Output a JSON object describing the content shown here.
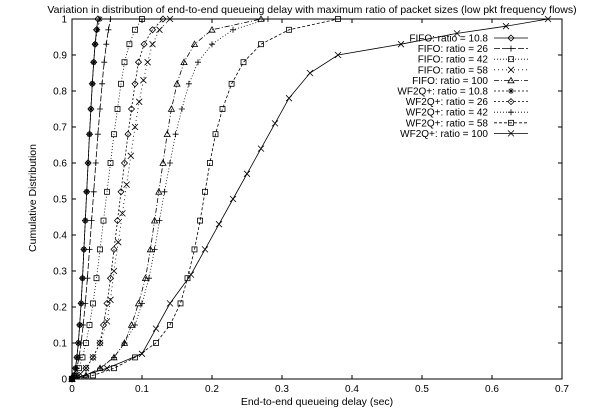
{
  "chart_data": {
    "type": "line",
    "title": "Variation in distribution of end-to-end queueing delay with maximum ratio of packet sizes (low pkt frequency flows)",
    "xlabel": "End-to-end queueing delay (sec)",
    "ylabel": "Cumulative Distribution",
    "xlim": [
      0,
      0.7
    ],
    "ylim": [
      0,
      1
    ],
    "xticks": [
      "0",
      "0.1",
      "0.2",
      "0.3",
      "0.4",
      "0.5",
      "0.6",
      "0.7"
    ],
    "yticks": [
      "0",
      "0.1",
      "0.2",
      "0.3",
      "0.4",
      "0.5",
      "0.6",
      "0.7",
      "0.8",
      "0.9",
      "1"
    ],
    "grid": false,
    "legend_position": "top-right",
    "series": [
      {
        "name": "FIFO: ratio = 10.8",
        "marker": "diamond",
        "dash": "solid",
        "points": [
          [
            0,
            0
          ],
          [
            0.003,
            0.01
          ],
          [
            0.005,
            0.03
          ],
          [
            0.007,
            0.06
          ],
          [
            0.009,
            0.1
          ],
          [
            0.011,
            0.15
          ],
          [
            0.013,
            0.21
          ],
          [
            0.015,
            0.28
          ],
          [
            0.017,
            0.36
          ],
          [
            0.019,
            0.44
          ],
          [
            0.021,
            0.52
          ],
          [
            0.023,
            0.6
          ],
          [
            0.025,
            0.68
          ],
          [
            0.027,
            0.75
          ],
          [
            0.029,
            0.82
          ],
          [
            0.031,
            0.88
          ],
          [
            0.033,
            0.93
          ],
          [
            0.035,
            0.97
          ],
          [
            0.037,
            1.0
          ]
        ]
      },
      {
        "name": "FIFO: ratio = 26",
        "marker": "plus",
        "dash": "6,2",
        "points": [
          [
            0,
            0
          ],
          [
            0.004,
            0.01
          ],
          [
            0.007,
            0.03
          ],
          [
            0.01,
            0.06
          ],
          [
            0.013,
            0.1
          ],
          [
            0.016,
            0.15
          ],
          [
            0.019,
            0.21
          ],
          [
            0.022,
            0.28
          ],
          [
            0.025,
            0.36
          ],
          [
            0.028,
            0.44
          ],
          [
            0.031,
            0.52
          ],
          [
            0.034,
            0.6
          ],
          [
            0.037,
            0.68
          ],
          [
            0.04,
            0.75
          ],
          [
            0.043,
            0.82
          ],
          [
            0.046,
            0.88
          ],
          [
            0.049,
            0.93
          ],
          [
            0.052,
            0.97
          ],
          [
            0.055,
            1.0
          ]
        ]
      },
      {
        "name": "FIFO: ratio = 42",
        "marker": "square",
        "dash": "1,2",
        "points": [
          [
            0,
            0
          ],
          [
            0.005,
            0.01
          ],
          [
            0.01,
            0.03
          ],
          [
            0.015,
            0.06
          ],
          [
            0.02,
            0.1
          ],
          [
            0.025,
            0.15
          ],
          [
            0.03,
            0.21
          ],
          [
            0.035,
            0.28
          ],
          [
            0.04,
            0.36
          ],
          [
            0.045,
            0.44
          ],
          [
            0.05,
            0.52
          ],
          [
            0.055,
            0.6
          ],
          [
            0.06,
            0.68
          ],
          [
            0.065,
            0.75
          ],
          [
            0.07,
            0.82
          ],
          [
            0.075,
            0.88
          ],
          [
            0.082,
            0.93
          ],
          [
            0.09,
            0.97
          ],
          [
            0.1,
            1.0
          ]
        ]
      },
      {
        "name": "FIFO: ratio = 58",
        "marker": "x",
        "dash": "1,3",
        "points": [
          [
            0,
            0
          ],
          [
            0.01,
            0.01
          ],
          [
            0.02,
            0.03
          ],
          [
            0.03,
            0.06
          ],
          [
            0.04,
            0.1
          ],
          [
            0.05,
            0.16
          ],
          [
            0.055,
            0.22
          ],
          [
            0.06,
            0.3
          ],
          [
            0.066,
            0.38
          ],
          [
            0.072,
            0.46
          ],
          [
            0.078,
            0.54
          ],
          [
            0.084,
            0.62
          ],
          [
            0.09,
            0.7
          ],
          [
            0.096,
            0.77
          ],
          [
            0.102,
            0.83
          ],
          [
            0.108,
            0.88
          ],
          [
            0.115,
            0.93
          ],
          [
            0.125,
            0.97
          ],
          [
            0.14,
            1.0
          ]
        ]
      },
      {
        "name": "FIFO: ratio = 100",
        "marker": "triangle",
        "dash": "5,2,1,2",
        "points": [
          [
            0,
            0
          ],
          [
            0.02,
            0.01
          ],
          [
            0.04,
            0.03
          ],
          [
            0.06,
            0.06
          ],
          [
            0.075,
            0.1
          ],
          [
            0.085,
            0.15
          ],
          [
            0.095,
            0.21
          ],
          [
            0.105,
            0.28
          ],
          [
            0.112,
            0.36
          ],
          [
            0.118,
            0.44
          ],
          [
            0.124,
            0.52
          ],
          [
            0.13,
            0.6
          ],
          [
            0.136,
            0.68
          ],
          [
            0.142,
            0.75
          ],
          [
            0.15,
            0.82
          ],
          [
            0.16,
            0.88
          ],
          [
            0.175,
            0.93
          ],
          [
            0.2,
            0.97
          ],
          [
            0.27,
            1.0
          ]
        ]
      },
      {
        "name": "WF2Q+: ratio = 10.8",
        "marker": "asterisk",
        "dash": "2,2",
        "points": [
          [
            0,
            0
          ],
          [
            0.003,
            0.01
          ],
          [
            0.005,
            0.03
          ],
          [
            0.007,
            0.06
          ],
          [
            0.009,
            0.1
          ],
          [
            0.011,
            0.15
          ],
          [
            0.013,
            0.21
          ],
          [
            0.015,
            0.28
          ],
          [
            0.017,
            0.36
          ],
          [
            0.019,
            0.44
          ],
          [
            0.021,
            0.52
          ],
          [
            0.023,
            0.6
          ],
          [
            0.025,
            0.68
          ],
          [
            0.027,
            0.75
          ],
          [
            0.029,
            0.82
          ],
          [
            0.031,
            0.88
          ],
          [
            0.033,
            0.93
          ],
          [
            0.036,
            0.97
          ],
          [
            0.04,
            1.0
          ]
        ]
      },
      {
        "name": "WF2Q+: ratio = 26",
        "marker": "diamond",
        "dash": "2,2",
        "points": [
          [
            0,
            0
          ],
          [
            0.01,
            0.01
          ],
          [
            0.02,
            0.03
          ],
          [
            0.03,
            0.06
          ],
          [
            0.04,
            0.1
          ],
          [
            0.045,
            0.15
          ],
          [
            0.05,
            0.21
          ],
          [
            0.055,
            0.28
          ],
          [
            0.06,
            0.36
          ],
          [
            0.065,
            0.44
          ],
          [
            0.07,
            0.52
          ],
          [
            0.075,
            0.6
          ],
          [
            0.08,
            0.68
          ],
          [
            0.085,
            0.75
          ],
          [
            0.09,
            0.82
          ],
          [
            0.095,
            0.88
          ],
          [
            0.103,
            0.93
          ],
          [
            0.115,
            0.97
          ],
          [
            0.13,
            1.0
          ]
        ]
      },
      {
        "name": "WF2Q+: ratio = 42",
        "marker": "plus",
        "dash": "1,2",
        "points": [
          [
            0,
            0
          ],
          [
            0.02,
            0.01
          ],
          [
            0.04,
            0.03
          ],
          [
            0.06,
            0.06
          ],
          [
            0.075,
            0.1
          ],
          [
            0.09,
            0.15
          ],
          [
            0.1,
            0.21
          ],
          [
            0.11,
            0.28
          ],
          [
            0.118,
            0.36
          ],
          [
            0.125,
            0.44
          ],
          [
            0.132,
            0.52
          ],
          [
            0.14,
            0.6
          ],
          [
            0.148,
            0.68
          ],
          [
            0.157,
            0.75
          ],
          [
            0.167,
            0.82
          ],
          [
            0.18,
            0.88
          ],
          [
            0.2,
            0.93
          ],
          [
            0.23,
            0.97
          ],
          [
            0.28,
            1.0
          ]
        ]
      },
      {
        "name": "WF2Q+: ratio = 58",
        "marker": "square",
        "dash": "3,2",
        "points": [
          [
            0,
            0
          ],
          [
            0.03,
            0.01
          ],
          [
            0.06,
            0.03
          ],
          [
            0.09,
            0.06
          ],
          [
            0.12,
            0.1
          ],
          [
            0.14,
            0.15
          ],
          [
            0.155,
            0.21
          ],
          [
            0.165,
            0.28
          ],
          [
            0.175,
            0.36
          ],
          [
            0.183,
            0.44
          ],
          [
            0.19,
            0.52
          ],
          [
            0.197,
            0.6
          ],
          [
            0.205,
            0.68
          ],
          [
            0.215,
            0.75
          ],
          [
            0.228,
            0.82
          ],
          [
            0.245,
            0.88
          ],
          [
            0.27,
            0.93
          ],
          [
            0.31,
            0.97
          ],
          [
            0.38,
            1.0
          ]
        ]
      },
      {
        "name": "WF2Q+: ratio = 100",
        "marker": "x",
        "dash": "solid",
        "points": [
          [
            0,
            0
          ],
          [
            0.05,
            0.03
          ],
          [
            0.1,
            0.07
          ],
          [
            0.12,
            0.14
          ],
          [
            0.14,
            0.21
          ],
          [
            0.17,
            0.29
          ],
          [
            0.19,
            0.36
          ],
          [
            0.21,
            0.43
          ],
          [
            0.23,
            0.5
          ],
          [
            0.25,
            0.57
          ],
          [
            0.27,
            0.64
          ],
          [
            0.29,
            0.71
          ],
          [
            0.31,
            0.78
          ],
          [
            0.34,
            0.85
          ],
          [
            0.38,
            0.9
          ],
          [
            0.47,
            0.93
          ],
          [
            0.55,
            0.96
          ],
          [
            0.62,
            0.98
          ],
          [
            0.68,
            1.0
          ]
        ]
      }
    ]
  }
}
